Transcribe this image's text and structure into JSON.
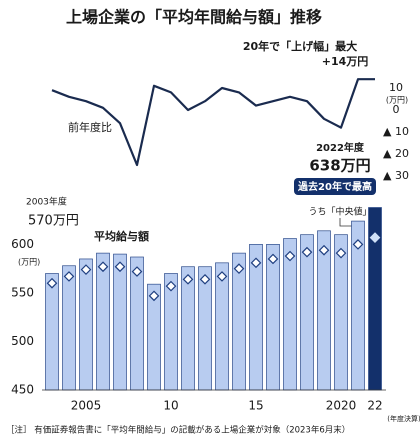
{
  "title": "上場企業の「平均年間給与額」推移",
  "footnote": "［注］ 有価証券報告書に「平均年間給与」の記載がある上場企業が対象（2023年6月末）",
  "annotations": {
    "max_rise": "20年で「上げ幅」最大",
    "max_rise_value": "+14万円",
    "yoy": "前年度比",
    "unit_top": "(万円)",
    "y2022": "2022年度",
    "v2022": "638万円",
    "record": "過去20年で最高",
    "y2003": "2003年度",
    "v2003": "570万円",
    "unit_bottom": "(万円)",
    "fiscal": "(年度決算)"
  },
  "chart_data": [
    {
      "type": "line",
      "x": [
        2003,
        2004,
        2005,
        2006,
        2007,
        2008,
        2009,
        2010,
        2011,
        2012,
        2013,
        2014,
        2015,
        2016,
        2017,
        2018,
        2019,
        2020,
        2021,
        2022
      ],
      "series": [
        {
          "name": "前年度比",
          "color": "#1a2b4f",
          "values": [
            9,
            6,
            4,
            1,
            -6,
            -25,
            11,
            8,
            0,
            4,
            10,
            8,
            2,
            4,
            6,
            4,
            -4,
            -8,
            14,
            14
          ]
        }
      ],
      "xlim": [
        2002.5,
        2022.6
      ],
      "ylim": [
        -35,
        15
      ],
      "yticks": [
        10,
        0,
        {
          "value": -10,
          "label": "▲ 10"
        },
        {
          "value": -20,
          "label": "▲ 20"
        },
        {
          "value": -30,
          "label": "▲ 30"
        }
      ]
    },
    {
      "type": "bar",
      "x": [
        2003,
        2004,
        2005,
        2006,
        2007,
        2008,
        2009,
        2010,
        2011,
        2012,
        2013,
        2014,
        2015,
        2016,
        2017,
        2018,
        2019,
        2020,
        2021,
        2022
      ],
      "series": [
        {
          "name": "平均給与額",
          "color": "#b8ccf0",
          "highlight_color": "#13306b",
          "values": [
            570,
            578,
            585,
            591,
            590,
            587,
            559,
            570,
            577,
            577,
            581,
            591,
            600,
            600,
            606,
            610,
            614,
            610,
            624,
            638
          ]
        },
        {
          "name": "うち「中央値」",
          "color": "#1f3f80",
          "values": [
            560,
            567,
            574,
            577,
            577,
            572,
            547,
            557,
            564,
            564,
            567,
            575,
            581,
            585,
            588,
            592,
            594,
            591,
            600,
            607
          ]
        }
      ],
      "xlim": [
        2002.5,
        2022.6
      ],
      "xticks": [
        2005,
        {
          "value": 2010,
          "label": "10"
        },
        {
          "value": 2015,
          "label": "15"
        },
        2020,
        {
          "value": 2022,
          "label": "22"
        }
      ],
      "ylim": [
        450,
        655
      ],
      "yticks": [
        450,
        500,
        550,
        600
      ]
    }
  ]
}
